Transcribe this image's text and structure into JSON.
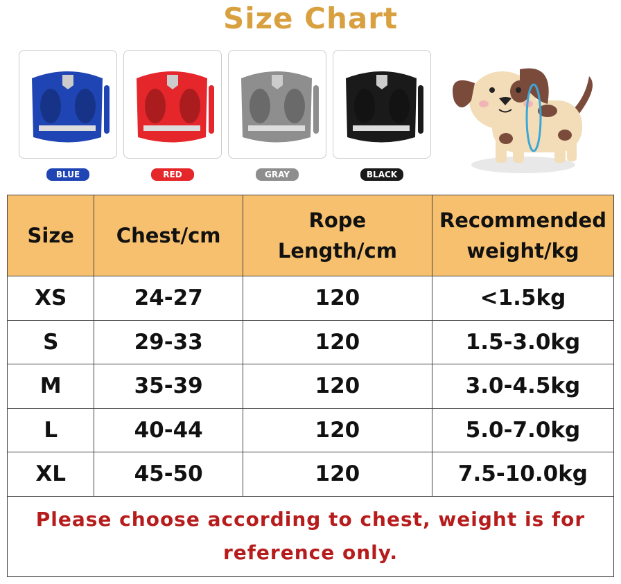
{
  "title": "Size Chart",
  "colors": [
    {
      "label": "BLUE",
      "hex": "#1F45B5"
    },
    {
      "label": "RED",
      "hex": "#E5262A"
    },
    {
      "label": "GRAY",
      "hex": "#8E8E8E"
    },
    {
      "label": "BLACK",
      "hex": "#1A1A1A"
    }
  ],
  "table": {
    "headers": [
      "Size",
      "Chest/cm",
      "Rope Length/cm",
      "Recommended weight/kg"
    ],
    "rows": [
      [
        "XS",
        "24-27",
        "120",
        "<1.5kg"
      ],
      [
        "S",
        "29-33",
        "120",
        "1.5-3.0kg"
      ],
      [
        "M",
        "35-39",
        "120",
        "3.0-4.5kg"
      ],
      [
        "L",
        "40-44",
        "120",
        "5.0-7.0kg"
      ],
      [
        "XL",
        "45-50",
        "120",
        "7.5-10.0kg"
      ]
    ],
    "note": "Please choose according to chest, weight is for reference only."
  },
  "header_color": "#F6C06E",
  "title_color": "#D9A040",
  "note_color": "#B71C1C"
}
